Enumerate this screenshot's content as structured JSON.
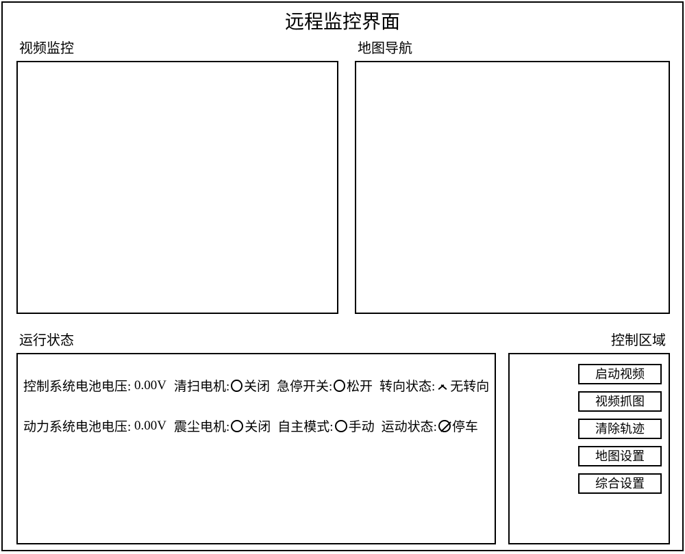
{
  "title": "远程监控界面",
  "panels": {
    "video": {
      "label": "视频监控"
    },
    "map": {
      "label": "地图导航"
    }
  },
  "status": {
    "label": "运行状态",
    "row1": {
      "voltage_label": "控制系统电池电压:",
      "voltage_value": "0.00V",
      "motor_label": "清扫电机:",
      "motor_value": "关闭",
      "switch_label": "急停开关:",
      "switch_value": "松开",
      "steer_label": "转向状态:",
      "steer_value": "无转向"
    },
    "row2": {
      "voltage_label": "动力系统电池电压:",
      "voltage_value": "0.00V",
      "motor_label": "震尘电机:",
      "motor_value": "关闭",
      "mode_label": "自主模式:",
      "mode_value": "手动",
      "motion_label": "运动状态:",
      "motion_value": "停车"
    }
  },
  "control": {
    "label": "控制区域",
    "buttons": {
      "start_video": "启动视频",
      "capture": "视频抓图",
      "clear_track": "清除轨迹",
      "map_settings": "地图设置",
      "general_settings": "综合设置"
    }
  },
  "colors": {
    "border": "#000000",
    "background": "#ffffff",
    "text": "#000000"
  }
}
